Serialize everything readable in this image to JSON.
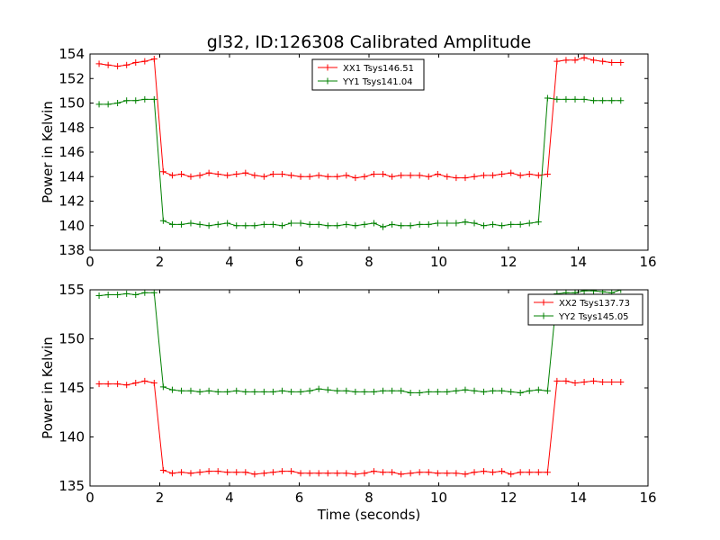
{
  "figure": {
    "title": "gl32, ID:126308 Calibrated Amplitude",
    "xlabel": "Time (seconds)"
  },
  "chart_data": [
    {
      "type": "line",
      "ylabel": "Power in Kelvin",
      "xlim": [
        0,
        16
      ],
      "ylim": [
        138,
        154
      ],
      "xticks": [
        "0",
        "2",
        "4",
        "6",
        "8",
        "10",
        "12",
        "14",
        "16"
      ],
      "yticks": [
        "138",
        "140",
        "142",
        "144",
        "146",
        "148",
        "150",
        "152",
        "154"
      ],
      "legend_position": "top-center",
      "x": [
        0.26,
        0.52,
        0.79,
        1.05,
        1.31,
        1.57,
        1.84,
        2.1,
        2.36,
        2.62,
        2.89,
        3.15,
        3.41,
        3.67,
        3.94,
        4.2,
        4.46,
        4.72,
        4.99,
        5.25,
        5.51,
        5.77,
        6.04,
        6.3,
        6.56,
        6.82,
        7.09,
        7.35,
        7.61,
        7.87,
        8.14,
        8.4,
        8.66,
        8.92,
        9.19,
        9.45,
        9.71,
        9.97,
        10.24,
        10.5,
        10.76,
        11.02,
        11.29,
        11.55,
        11.81,
        12.07,
        12.34,
        12.6,
        12.86,
        13.12,
        13.39,
        13.65,
        13.91,
        14.17,
        14.44,
        14.7,
        14.96,
        15.22
      ],
      "series": [
        {
          "name": "XX1 Tsys146.51",
          "color": "#ff0000",
          "values": [
            153.2,
            153.1,
            153.0,
            153.1,
            153.3,
            153.4,
            153.6,
            144.4,
            144.1,
            144.2,
            144.0,
            144.1,
            144.3,
            144.2,
            144.1,
            144.2,
            144.3,
            144.1,
            144.0,
            144.2,
            144.2,
            144.1,
            144.0,
            144.0,
            144.1,
            144.0,
            144.0,
            144.1,
            143.9,
            144.0,
            144.2,
            144.2,
            144.0,
            144.1,
            144.1,
            144.1,
            144.0,
            144.2,
            144.0,
            143.9,
            143.9,
            144.0,
            144.1,
            144.1,
            144.2,
            144.3,
            144.1,
            144.2,
            144.1,
            144.2,
            153.4,
            153.5,
            153.5,
            153.7,
            153.5,
            153.4,
            153.3,
            153.3
          ]
        },
        {
          "name": "YY1 Tsys141.04",
          "color": "#008000",
          "values": [
            149.9,
            149.9,
            150.0,
            150.2,
            150.2,
            150.3,
            150.3,
            140.4,
            140.1,
            140.1,
            140.2,
            140.1,
            140.0,
            140.1,
            140.2,
            140.0,
            140.0,
            140.0,
            140.1,
            140.1,
            140.0,
            140.2,
            140.2,
            140.1,
            140.1,
            140.0,
            140.0,
            140.1,
            140.0,
            140.1,
            140.2,
            139.9,
            140.1,
            140.0,
            140.0,
            140.1,
            140.1,
            140.2,
            140.2,
            140.2,
            140.3,
            140.2,
            140.0,
            140.1,
            140.0,
            140.1,
            140.1,
            140.2,
            140.3,
            150.4,
            150.3,
            150.3,
            150.3,
            150.3,
            150.2,
            150.2,
            150.2,
            150.2
          ]
        }
      ]
    },
    {
      "type": "line",
      "ylabel": "Power in Kelvin",
      "xlabel": "Time (seconds)",
      "xlim": [
        0,
        16
      ],
      "ylim": [
        135,
        155
      ],
      "xticks": [
        "0",
        "2",
        "4",
        "6",
        "8",
        "10",
        "12",
        "14",
        "16"
      ],
      "yticks": [
        "135",
        "140",
        "145",
        "150",
        "155"
      ],
      "legend_position": "top-right",
      "x": [
        0.26,
        0.52,
        0.79,
        1.05,
        1.31,
        1.57,
        1.84,
        2.1,
        2.36,
        2.62,
        2.89,
        3.15,
        3.41,
        3.67,
        3.94,
        4.2,
        4.46,
        4.72,
        4.99,
        5.25,
        5.51,
        5.77,
        6.04,
        6.3,
        6.56,
        6.82,
        7.09,
        7.35,
        7.61,
        7.87,
        8.14,
        8.4,
        8.66,
        8.92,
        9.19,
        9.45,
        9.71,
        9.97,
        10.24,
        10.5,
        10.76,
        11.02,
        11.29,
        11.55,
        11.81,
        12.07,
        12.34,
        12.6,
        12.86,
        13.12,
        13.39,
        13.65,
        13.91,
        14.17,
        14.44,
        14.7,
        14.96,
        15.22
      ],
      "series": [
        {
          "name": "XX2 Tsys137.73",
          "color": "#ff0000",
          "values": [
            145.4,
            145.4,
            145.4,
            145.3,
            145.5,
            145.7,
            145.5,
            136.6,
            136.3,
            136.4,
            136.3,
            136.4,
            136.5,
            136.5,
            136.4,
            136.4,
            136.4,
            136.2,
            136.3,
            136.4,
            136.5,
            136.5,
            136.3,
            136.3,
            136.3,
            136.3,
            136.3,
            136.3,
            136.2,
            136.3,
            136.5,
            136.4,
            136.4,
            136.2,
            136.3,
            136.4,
            136.4,
            136.3,
            136.3,
            136.3,
            136.2,
            136.4,
            136.5,
            136.4,
            136.5,
            136.2,
            136.4,
            136.4,
            136.4,
            136.4,
            145.7,
            145.7,
            145.5,
            145.6,
            145.7,
            145.6,
            145.6,
            145.6
          ]
        },
        {
          "name": "YY2 Tsys145.05",
          "color": "#008000",
          "values": [
            154.4,
            154.5,
            154.5,
            154.6,
            154.5,
            154.7,
            154.7,
            145.1,
            144.8,
            144.7,
            144.7,
            144.6,
            144.7,
            144.6,
            144.6,
            144.7,
            144.6,
            144.6,
            144.6,
            144.6,
            144.7,
            144.6,
            144.6,
            144.7,
            144.9,
            144.8,
            144.7,
            144.7,
            144.6,
            144.6,
            144.6,
            144.7,
            144.7,
            144.7,
            144.5,
            144.5,
            144.6,
            144.6,
            144.6,
            144.7,
            144.8,
            144.7,
            144.6,
            144.7,
            144.7,
            144.6,
            144.5,
            144.7,
            144.8,
            144.7,
            154.6,
            154.7,
            154.7,
            154.9,
            154.9,
            154.8,
            154.7,
            155.0
          ]
        }
      ]
    }
  ]
}
